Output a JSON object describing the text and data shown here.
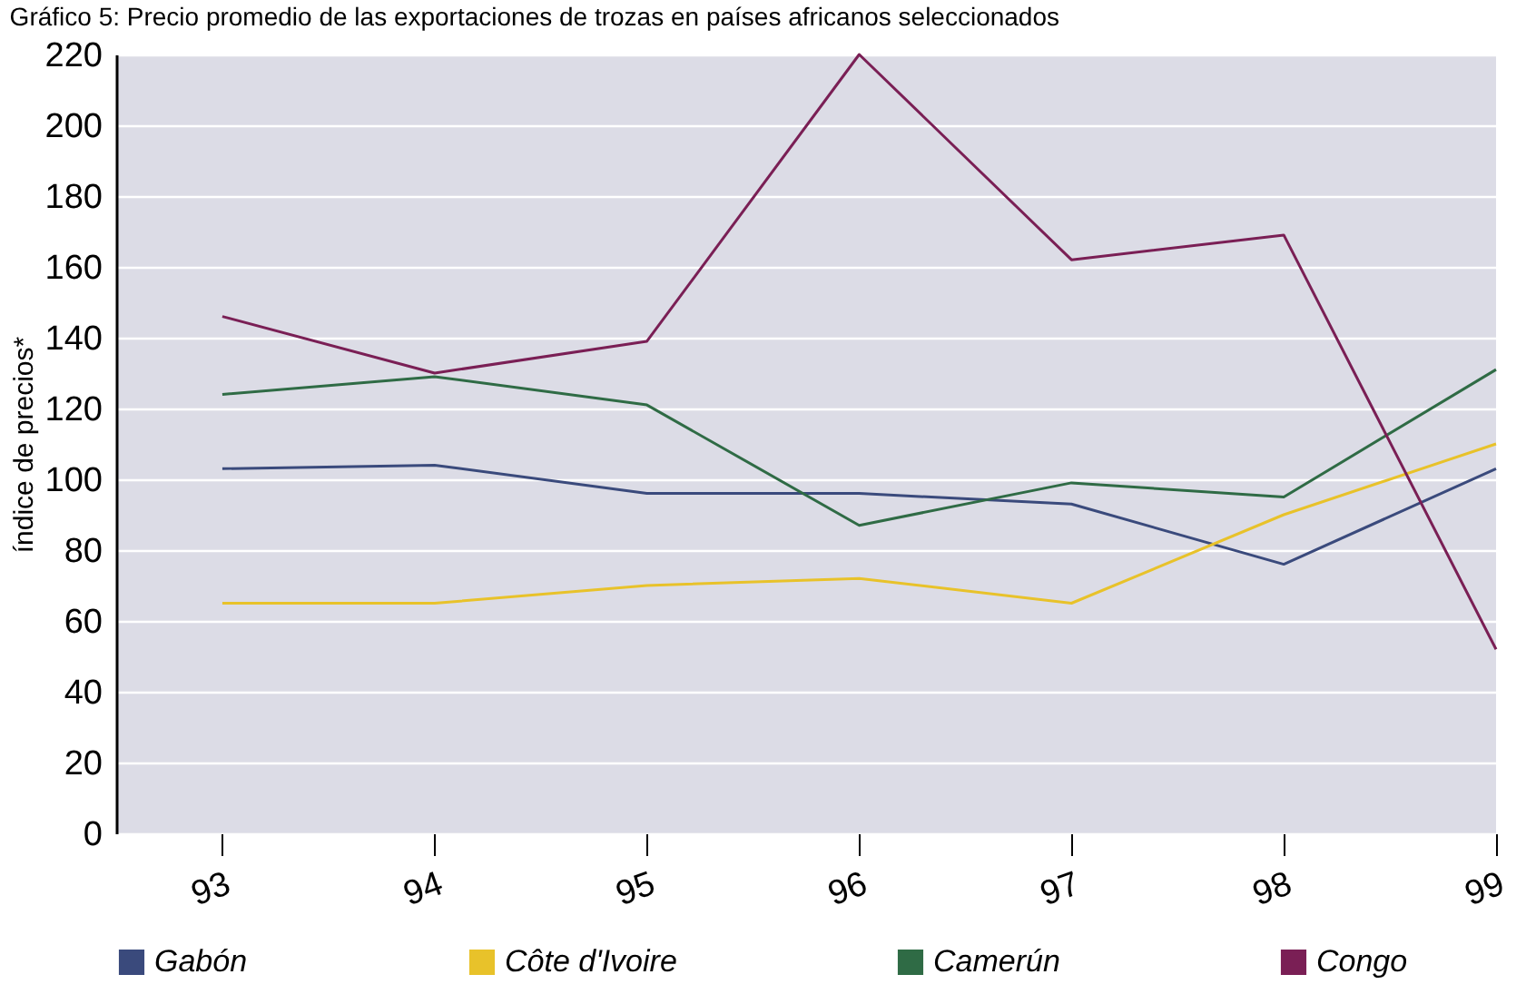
{
  "chart_data": {
    "type": "line",
    "title": "Gráfico 5: Precio promedio de las exportaciones de trozas en países africanos seleccionados",
    "ylabel": "índice de precios*",
    "x": [
      93,
      94,
      95,
      96,
      97,
      98,
      99
    ],
    "xlim": [
      92.5,
      99
    ],
    "xticks": [
      93,
      94,
      95,
      96,
      97,
      98,
      99
    ],
    "ylim": [
      0,
      220
    ],
    "yticks": [
      0,
      20,
      40,
      60,
      80,
      100,
      120,
      140,
      160,
      180,
      200,
      220
    ],
    "grid": "y",
    "legend": "bottom",
    "marker": "none",
    "line_style": "solid",
    "series": [
      {
        "name": "Gabón",
        "color": "#3a4a7c",
        "values": [
          103,
          104,
          96,
          96,
          93,
          76,
          103
        ]
      },
      {
        "name": "Côte d'Ivoire",
        "color": "#e8c22a",
        "values": [
          65,
          65,
          70,
          72,
          65,
          90,
          110
        ]
      },
      {
        "name": "Camerún",
        "color": "#2f6b45",
        "values": [
          124,
          129,
          121,
          87,
          99,
          95,
          131
        ]
      },
      {
        "name": "Congo",
        "color": "#7a1f55",
        "values": [
          146,
          130,
          139,
          220,
          162,
          169,
          52
        ]
      }
    ]
  }
}
